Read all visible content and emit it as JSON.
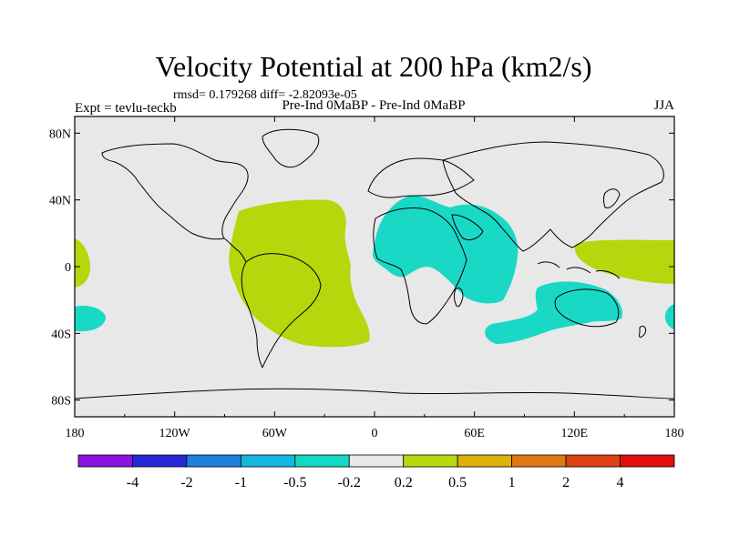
{
  "title": "Velocity Potential at 200 hPa (km2/s)",
  "stats": "rmsd= 0.179268 diff= -2.82093e-05",
  "expt": "Expt = tevlu-teckb",
  "comparison": "Pre-Ind 0MaBP - Pre-Ind 0MaBP",
  "season": "JJA",
  "y_ticks": [
    "80N",
    "40N",
    "0",
    "40S",
    "80S"
  ],
  "x_ticks": [
    "180",
    "120W",
    "60W",
    "0",
    "60E",
    "120E",
    "180"
  ],
  "colorbar": {
    "labels": [
      "-4",
      "-2",
      "-1",
      "-0.5",
      "-0.2",
      "0.2",
      "0.5",
      "1",
      "2",
      "4"
    ],
    "colors": [
      "#8a14e0",
      "#2626d9",
      "#1f7fdc",
      "#15b6e0",
      "#14d9c2",
      "#e8e8e8",
      "#b8d80e",
      "#dcb10a",
      "#e07812",
      "#dc4212",
      "#e00e0e"
    ]
  },
  "colors": {
    "positive_fill": "#b7d60c",
    "negative_fill": "#1ad8c6",
    "background_fill": "#e8e8e8"
  }
}
